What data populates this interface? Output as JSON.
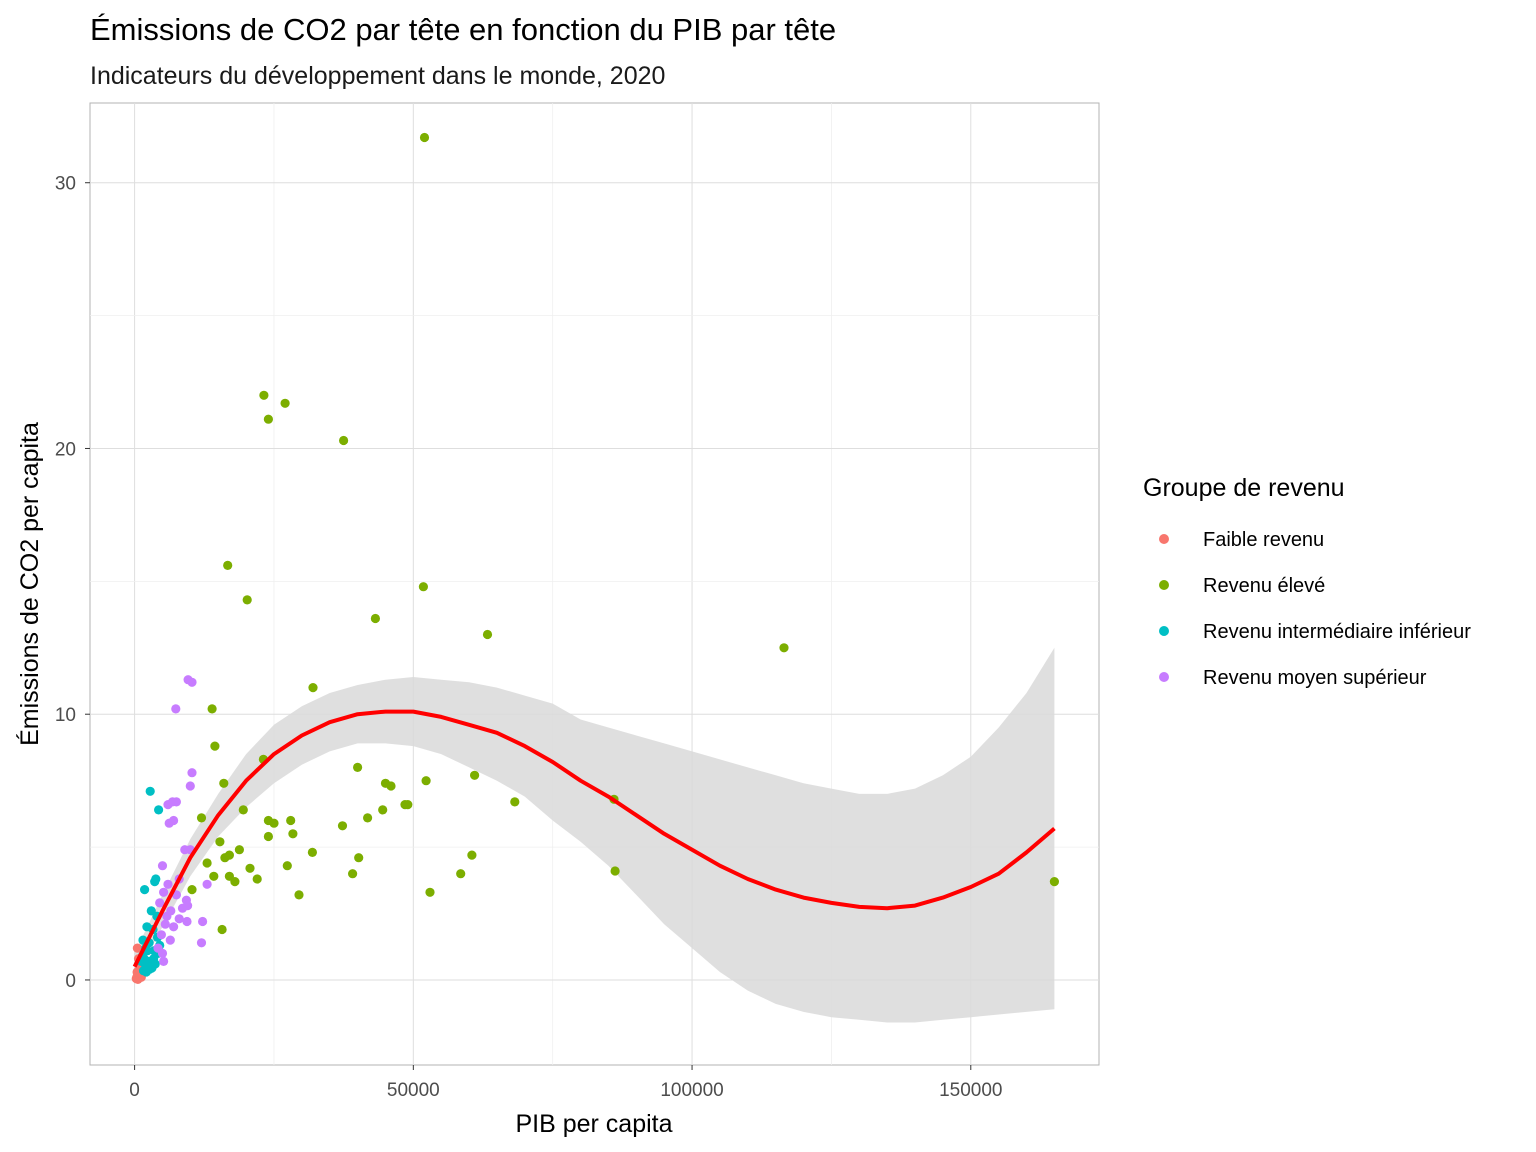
{
  "chart_data": {
    "type": "scatter",
    "title": "Émissions de CO2 par tête en fonction du PIB par tête",
    "subtitle": "Indicateurs du développement dans le monde, 2020",
    "xlabel": "PIB per capita",
    "ylabel": "Émissions de CO2 per capita",
    "xlim": [
      -8000,
      173000
    ],
    "ylim": [
      -3.2,
      33.0
    ],
    "x_ticks": [
      0,
      50000,
      100000,
      150000
    ],
    "x_tick_labels": [
      "0",
      "50000",
      "100000",
      "150000"
    ],
    "y_ticks": [
      0,
      10,
      20,
      30
    ],
    "y_tick_labels": [
      "0",
      "10",
      "20",
      "30"
    ],
    "grid": true,
    "legend": {
      "title": "Groupe de revenu",
      "position": "right",
      "entries": [
        {
          "name": "Faible revenu",
          "color": "#F8766D"
        },
        {
          "name": "Revenu élevé",
          "color": "#7CAE00"
        },
        {
          "name": "Revenu intermédiaire inférieur",
          "color": "#00BFC4"
        },
        {
          "name": "Revenu moyen supérieur",
          "color": "#C77CFF"
        }
      ]
    },
    "series": [
      {
        "name": "Faible revenu",
        "color": "#F8766D",
        "points": [
          [
            300,
            0.05
          ],
          [
            400,
            0.1
          ],
          [
            500,
            0.15
          ],
          [
            550,
            0.05
          ],
          [
            600,
            0.2
          ],
          [
            650,
            0.12
          ],
          [
            700,
            0.25
          ],
          [
            750,
            0.1
          ],
          [
            800,
            0.3
          ],
          [
            850,
            0.18
          ],
          [
            900,
            0.4
          ],
          [
            500,
            1.2
          ],
          [
            700,
            0.8
          ],
          [
            1000,
            0.15
          ],
          [
            1100,
            0.35
          ],
          [
            600,
            0.02
          ],
          [
            1200,
            0.1
          ],
          [
            950,
            0.5
          ],
          [
            450,
            0.3
          ],
          [
            1300,
            0.22
          ]
        ]
      },
      {
        "name": "Revenu élevé",
        "color": "#7CAE00",
        "points": [
          [
            52000,
            31.7
          ],
          [
            23200,
            22.0
          ],
          [
            27000,
            21.7
          ],
          [
            24000,
            21.1
          ],
          [
            37500,
            20.3
          ],
          [
            16700,
            15.6
          ],
          [
            51800,
            14.8
          ],
          [
            20200,
            14.3
          ],
          [
            43200,
            13.6
          ],
          [
            63300,
            13.0
          ],
          [
            116500,
            12.5
          ],
          [
            32000,
            11.0
          ],
          [
            13900,
            10.2
          ],
          [
            14400,
            8.8
          ],
          [
            23100,
            8.3
          ],
          [
            40000,
            8.0
          ],
          [
            61000,
            7.7
          ],
          [
            16000,
            7.4
          ],
          [
            45000,
            7.4
          ],
          [
            46000,
            7.3
          ],
          [
            52300,
            7.5
          ],
          [
            19500,
            6.4
          ],
          [
            28000,
            6.0
          ],
          [
            68200,
            6.7
          ],
          [
            86000,
            6.8
          ],
          [
            48500,
            6.6
          ],
          [
            49000,
            6.6
          ],
          [
            44500,
            6.4
          ],
          [
            41800,
            6.1
          ],
          [
            12000,
            6.1
          ],
          [
            24000,
            6.0
          ],
          [
            25000,
            5.9
          ],
          [
            37300,
            5.8
          ],
          [
            28400,
            5.5
          ],
          [
            24000,
            5.4
          ],
          [
            15300,
            5.2
          ],
          [
            18800,
            4.9
          ],
          [
            17000,
            4.7
          ],
          [
            16200,
            4.6
          ],
          [
            31900,
            4.8
          ],
          [
            40200,
            4.6
          ],
          [
            60500,
            4.7
          ],
          [
            13000,
            4.4
          ],
          [
            27400,
            4.3
          ],
          [
            86200,
            4.1
          ],
          [
            58500,
            4.0
          ],
          [
            39100,
            4.0
          ],
          [
            17000,
            3.9
          ],
          [
            14200,
            3.9
          ],
          [
            22000,
            3.8
          ],
          [
            18000,
            3.7
          ],
          [
            165000,
            3.7
          ],
          [
            53000,
            3.3
          ],
          [
            29500,
            3.2
          ],
          [
            10300,
            3.4
          ],
          [
            15700,
            1.9
          ],
          [
            20700,
            4.2
          ]
        ]
      },
      {
        "name": "Revenu intermédiaire inférieur",
        "color": "#00BFC4",
        "points": [
          [
            2800,
            7.1
          ],
          [
            4300,
            6.4
          ],
          [
            3600,
            3.7
          ],
          [
            3800,
            3.8
          ],
          [
            1800,
            3.4
          ],
          [
            3000,
            2.6
          ],
          [
            4000,
            2.4
          ],
          [
            2200,
            2.0
          ],
          [
            3300,
            1.9
          ],
          [
            1500,
            1.5
          ],
          [
            2600,
            1.4
          ],
          [
            2000,
            1.2
          ],
          [
            3500,
            1.1
          ],
          [
            4200,
            1.0
          ],
          [
            1700,
            0.8
          ],
          [
            2400,
            0.7
          ],
          [
            1900,
            0.6
          ],
          [
            2900,
            0.5
          ],
          [
            3100,
            0.45
          ],
          [
            1600,
            0.35
          ],
          [
            2100,
            0.3
          ],
          [
            2700,
            0.4
          ],
          [
            3700,
            0.6
          ],
          [
            4500,
            1.3
          ],
          [
            1400,
            0.9
          ],
          [
            2300,
            1.1
          ],
          [
            3400,
            0.8
          ],
          [
            4100,
            1.6
          ],
          [
            1200,
            0.7
          ],
          [
            2500,
            0.5
          ]
        ]
      },
      {
        "name": "Revenu moyen supérieur",
        "color": "#C77CFF",
        "points": [
          [
            9600,
            11.3
          ],
          [
            10300,
            11.2
          ],
          [
            7400,
            10.2
          ],
          [
            10300,
            7.8
          ],
          [
            10000,
            7.3
          ],
          [
            6800,
            6.7
          ],
          [
            7500,
            6.7
          ],
          [
            6000,
            6.6
          ],
          [
            7000,
            6.0
          ],
          [
            6200,
            5.9
          ],
          [
            9000,
            4.9
          ],
          [
            10000,
            4.9
          ],
          [
            5000,
            4.3
          ],
          [
            8000,
            3.8
          ],
          [
            6000,
            3.6
          ],
          [
            7500,
            3.2
          ],
          [
            9300,
            3.0
          ],
          [
            5200,
            3.3
          ],
          [
            9500,
            2.8
          ],
          [
            6500,
            2.6
          ],
          [
            4500,
            2.9
          ],
          [
            12200,
            2.2
          ],
          [
            8000,
            2.3
          ],
          [
            5500,
            2.1
          ],
          [
            7000,
            2.0
          ],
          [
            9400,
            2.2
          ],
          [
            4800,
            1.7
          ],
          [
            6400,
            1.5
          ],
          [
            12000,
            1.4
          ],
          [
            4200,
            1.2
          ],
          [
            5000,
            1.0
          ],
          [
            5200,
            0.7
          ],
          [
            8600,
            2.7
          ],
          [
            13000,
            3.6
          ],
          [
            5800,
            2.4
          ]
        ]
      }
    ],
    "smooth": {
      "name": "loess",
      "color": "#FF0000",
      "band_color": "#D9D9D9",
      "points": [
        [
          0,
          0.5,
          0.0,
          1.0
        ],
        [
          5000,
          2.6,
          2.0,
          3.2
        ],
        [
          10000,
          4.6,
          3.9,
          5.3
        ],
        [
          15000,
          6.2,
          5.4,
          7.0
        ],
        [
          20000,
          7.5,
          6.5,
          8.5
        ],
        [
          25000,
          8.5,
          7.4,
          9.6
        ],
        [
          30000,
          9.2,
          8.1,
          10.3
        ],
        [
          35000,
          9.7,
          8.6,
          10.8
        ],
        [
          40000,
          10.0,
          8.9,
          11.1
        ],
        [
          45000,
          10.1,
          8.9,
          11.3
        ],
        [
          50000,
          10.1,
          8.8,
          11.4
        ],
        [
          55000,
          9.9,
          8.5,
          11.3
        ],
        [
          60000,
          9.6,
          8.0,
          11.2
        ],
        [
          65000,
          9.3,
          7.5,
          11.0
        ],
        [
          70000,
          8.8,
          6.9,
          10.7
        ],
        [
          75000,
          8.2,
          6.0,
          10.4
        ],
        [
          80000,
          7.5,
          5.2,
          9.8
        ],
        [
          85000,
          6.9,
          4.3,
          9.5
        ],
        [
          90000,
          6.2,
          3.2,
          9.2
        ],
        [
          95000,
          5.5,
          2.1,
          8.9
        ],
        [
          100000,
          4.9,
          1.2,
          8.6
        ],
        [
          105000,
          4.3,
          0.3,
          8.3
        ],
        [
          110000,
          3.8,
          -0.4,
          8.0
        ],
        [
          115000,
          3.4,
          -0.9,
          7.7
        ],
        [
          120000,
          3.1,
          -1.2,
          7.4
        ],
        [
          125000,
          2.9,
          -1.4,
          7.2
        ],
        [
          130000,
          2.75,
          -1.5,
          7.0
        ],
        [
          135000,
          2.7,
          -1.6,
          7.0
        ],
        [
          140000,
          2.8,
          -1.6,
          7.2
        ],
        [
          145000,
          3.1,
          -1.5,
          7.7
        ],
        [
          150000,
          3.5,
          -1.4,
          8.4
        ],
        [
          155000,
          4.0,
          -1.3,
          9.5
        ],
        [
          160000,
          4.8,
          -1.2,
          10.8
        ],
        [
          165000,
          5.7,
          -1.1,
          12.5
        ]
      ]
    }
  }
}
